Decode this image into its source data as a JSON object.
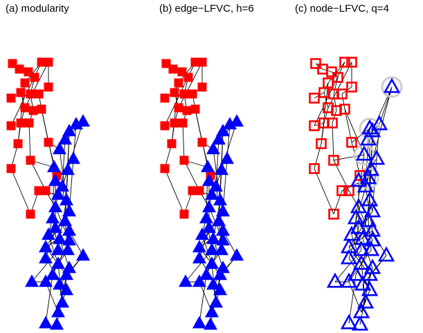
{
  "panels": [
    {
      "title": "(a) modularity",
      "style": "filled"
    },
    {
      "title": "(b) edge−LFVC, h=6",
      "style": "filled"
    },
    {
      "title": "(c) node−LFVC, q=4",
      "style": "hollow"
    }
  ],
  "colors": {
    "group_a": "#ff0000",
    "group_b": "#0000ff",
    "edge": "#000000",
    "highlight": "#cccccc"
  },
  "legend": {
    "group_a_marker": "square",
    "group_b_marker": "triangle",
    "highlight_marker": "circle"
  }
}
